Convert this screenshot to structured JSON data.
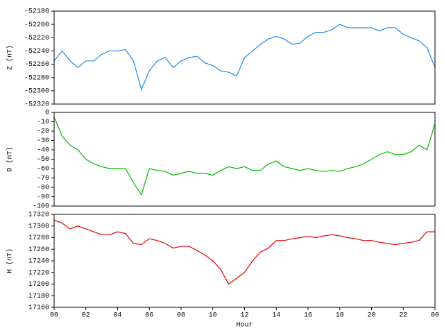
{
  "chart_data": [
    {
      "type": "line",
      "ylabel": "Z (nT)",
      "color": "#1e88e5",
      "x": [
        0,
        0.5,
        1,
        1.5,
        2,
        2.5,
        3,
        3.5,
        4,
        4.5,
        5,
        5.5,
        6,
        6.5,
        7,
        7.5,
        8,
        8.5,
        9,
        9.5,
        10,
        10.5,
        11,
        11.5,
        12,
        12.5,
        13,
        13.5,
        14,
        14.5,
        15,
        15.5,
        16,
        16.5,
        17,
        17.5,
        18,
        18.5,
        19,
        19.5,
        20,
        20.5,
        21,
        21.5,
        22,
        22.5,
        23,
        23.5,
        24
      ],
      "values": [
        -52255,
        -52240,
        -52255,
        -52265,
        -52255,
        -52255,
        -52245,
        -52240,
        -52240,
        -52238,
        -52255,
        -52298,
        -52270,
        -52255,
        -52250,
        -52265,
        -52255,
        -52250,
        -52248,
        -52258,
        -52262,
        -52270,
        -52272,
        -52278,
        -52250,
        -52240,
        -52230,
        -52222,
        -52218,
        -52222,
        -52230,
        -52228,
        -52218,
        -52212,
        -52212,
        -52208,
        -52200,
        -52205,
        -52205,
        -52205,
        -52205,
        -52210,
        -52205,
        -52205,
        -52215,
        -52220,
        -52225,
        -52235,
        -52265
      ],
      "xlim": [
        0,
        24
      ],
      "ylim": [
        -52320,
        -52180
      ],
      "yticks": [
        -52320,
        -52300,
        -52280,
        -52260,
        -52240,
        -52220,
        -52200,
        -52180
      ]
    },
    {
      "type": "line",
      "ylabel": "D (nT)",
      "color": "#00b800",
      "x": [
        0,
        0.5,
        1,
        1.5,
        2,
        2.5,
        3,
        3.5,
        4,
        4.5,
        5,
        5.5,
        6,
        6.5,
        7,
        7.5,
        8,
        8.5,
        9,
        9.5,
        10,
        10.5,
        11,
        11.5,
        12,
        12.5,
        13,
        13.5,
        14,
        14.5,
        15,
        15.5,
        16,
        16.5,
        17,
        17.5,
        18,
        18.5,
        19,
        19.5,
        20,
        20.5,
        21,
        21.5,
        22,
        22.5,
        23,
        23.5,
        24
      ],
      "values": [
        -5,
        -25,
        -35,
        -40,
        -50,
        -55,
        -58,
        -60,
        -60,
        -60,
        -75,
        -88,
        -60,
        -62,
        -63,
        -67,
        -65,
        -63,
        -65,
        -65,
        -67,
        -62,
        -58,
        -60,
        -58,
        -62,
        -62,
        -55,
        -52,
        -58,
        -60,
        -62,
        -60,
        -62,
        -63,
        -62,
        -63,
        -60,
        -58,
        -55,
        -50,
        -45,
        -42,
        -45,
        -45,
        -42,
        -35,
        -40,
        -12
      ],
      "xlim": [
        0,
        24
      ],
      "ylim": [
        -100,
        0
      ],
      "yticks": [
        -100,
        -90,
        -80,
        -70,
        -60,
        -50,
        -40,
        -30,
        -20,
        -10,
        0
      ]
    },
    {
      "type": "line",
      "ylabel": "H (nT)",
      "xlabel": "Hour",
      "color": "#e60000",
      "x": [
        0,
        0.5,
        1,
        1.5,
        2,
        2.5,
        3,
        3.5,
        4,
        4.5,
        5,
        5.5,
        6,
        6.5,
        7,
        7.5,
        8,
        8.5,
        9,
        9.5,
        10,
        10.5,
        11,
        11.5,
        12,
        12.5,
        13,
        13.5,
        14,
        14.5,
        15,
        15.5,
        16,
        16.5,
        17,
        17.5,
        18,
        18.5,
        19,
        19.5,
        20,
        20.5,
        21,
        21.5,
        22,
        22.5,
        23,
        23.5,
        24
      ],
      "values": [
        17310,
        17305,
        17295,
        17300,
        17295,
        17290,
        17285,
        17285,
        17290,
        17287,
        17270,
        17268,
        17278,
        17275,
        17270,
        17262,
        17265,
        17265,
        17258,
        17250,
        17240,
        17225,
        17200,
        17210,
        17220,
        17240,
        17255,
        17262,
        17275,
        17275,
        17278,
        17280,
        17282,
        17280,
        17283,
        17285,
        17283,
        17280,
        17278,
        17275,
        17275,
        17272,
        17270,
        17268,
        17270,
        17272,
        17275,
        17290,
        17290
      ],
      "xlim": [
        0,
        24
      ],
      "ylim": [
        17160,
        17320
      ],
      "yticks": [
        17160,
        17180,
        17200,
        17220,
        17240,
        17260,
        17280,
        17300,
        17320
      ],
      "xticks": [
        {
          "value": 0,
          "label": "00"
        },
        {
          "value": 2,
          "label": "02"
        },
        {
          "value": 4,
          "label": "04"
        },
        {
          "value": 6,
          "label": "06"
        },
        {
          "value": 8,
          "label": "08"
        },
        10,
        12,
        14,
        16,
        18,
        20,
        22,
        {
          "value": 24,
          "label": "00"
        }
      ]
    }
  ]
}
